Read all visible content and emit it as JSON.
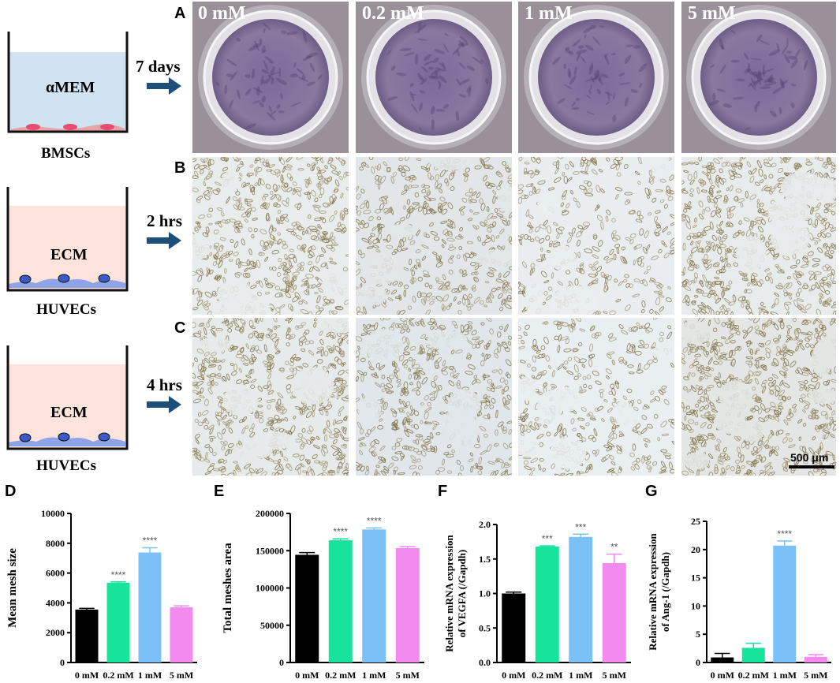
{
  "schematic": {
    "steps": [
      {
        "medium": "αMEM",
        "cells": "BMSCs",
        "time": "7 days",
        "panel": "A"
      },
      {
        "medium": "ECM",
        "cells": "HUVECs",
        "time": "2 hrs",
        "panel": "B"
      },
      {
        "medium": "ECM",
        "cells": "HUVECs",
        "time": "4 hrs",
        "panel": "C"
      }
    ]
  },
  "conditions": [
    "0 mM",
    "0.2 mM",
    "1 mM",
    "5 mM"
  ],
  "scale_bar": "500 μm",
  "colors": {
    "bar_0mM": "#000000",
    "bar_02mM": "#18E39A",
    "bar_1mM": "#7CC0F8",
    "bar_5mM": "#F28AF0",
    "alphaMEM_medium": "#CFE3F1",
    "ECM_medium": "#FCE3DC",
    "arrow": "#1F4E79"
  },
  "chart_data": [
    {
      "panel": "D",
      "type": "bar",
      "categories": [
        "0 mM",
        "0.2 mM",
        "1 mM",
        "5 mM"
      ],
      "values": [
        3550,
        5350,
        7380,
        3700
      ],
      "errors": [
        80,
        60,
        320,
        100
      ],
      "significance": [
        "",
        "****",
        "****",
        ""
      ],
      "ylabel": "Mean mesh size",
      "ylim": [
        0,
        10000
      ],
      "yticks": [
        0,
        2000,
        4000,
        6000,
        8000,
        10000
      ]
    },
    {
      "panel": "E",
      "type": "bar",
      "categories": [
        "0 mM",
        "0.2 mM",
        "1 mM",
        "5 mM"
      ],
      "values": [
        144500,
        164000,
        178500,
        153500
      ],
      "errors": [
        3000,
        2000,
        2000,
        2000
      ],
      "significance": [
        "",
        "****",
        "****",
        ""
      ],
      "ylabel": "Total meshes area",
      "ylim": [
        0,
        200000
      ],
      "yticks": [
        0,
        50000,
        100000,
        150000,
        200000
      ]
    },
    {
      "panel": "F",
      "type": "bar",
      "categories": [
        "0 mM",
        "0.2 mM",
        "1 mM",
        "5 mM"
      ],
      "values": [
        1.0,
        1.68,
        1.82,
        1.44
      ],
      "errors": [
        0.02,
        0.01,
        0.04,
        0.13
      ],
      "significance": [
        "",
        "***",
        "***",
        "**"
      ],
      "ylabel_lines": [
        "Relative mRNA expression",
        "of VEGFA (/Gapdh)"
      ],
      "ylim": [
        0,
        2.0
      ],
      "yticks": [
        "0.0",
        "0.5",
        "1.0",
        "1.5",
        "2.0"
      ]
    },
    {
      "panel": "G",
      "type": "bar",
      "categories": [
        "0 mM",
        "0.2 mM",
        "1 mM",
        "5 mM"
      ],
      "values": [
        0.9,
        2.6,
        20.7,
        1.0
      ],
      "errors": [
        0.7,
        0.8,
        0.8,
        0.4
      ],
      "significance": [
        "",
        "",
        "****",
        ""
      ],
      "ylabel_lines": [
        "Relative mRNA expression",
        "of Ang-1 (/Gapdh)"
      ],
      "ylim": [
        0,
        25
      ],
      "yticks": [
        0,
        5,
        10,
        15,
        20,
        25
      ]
    }
  ]
}
